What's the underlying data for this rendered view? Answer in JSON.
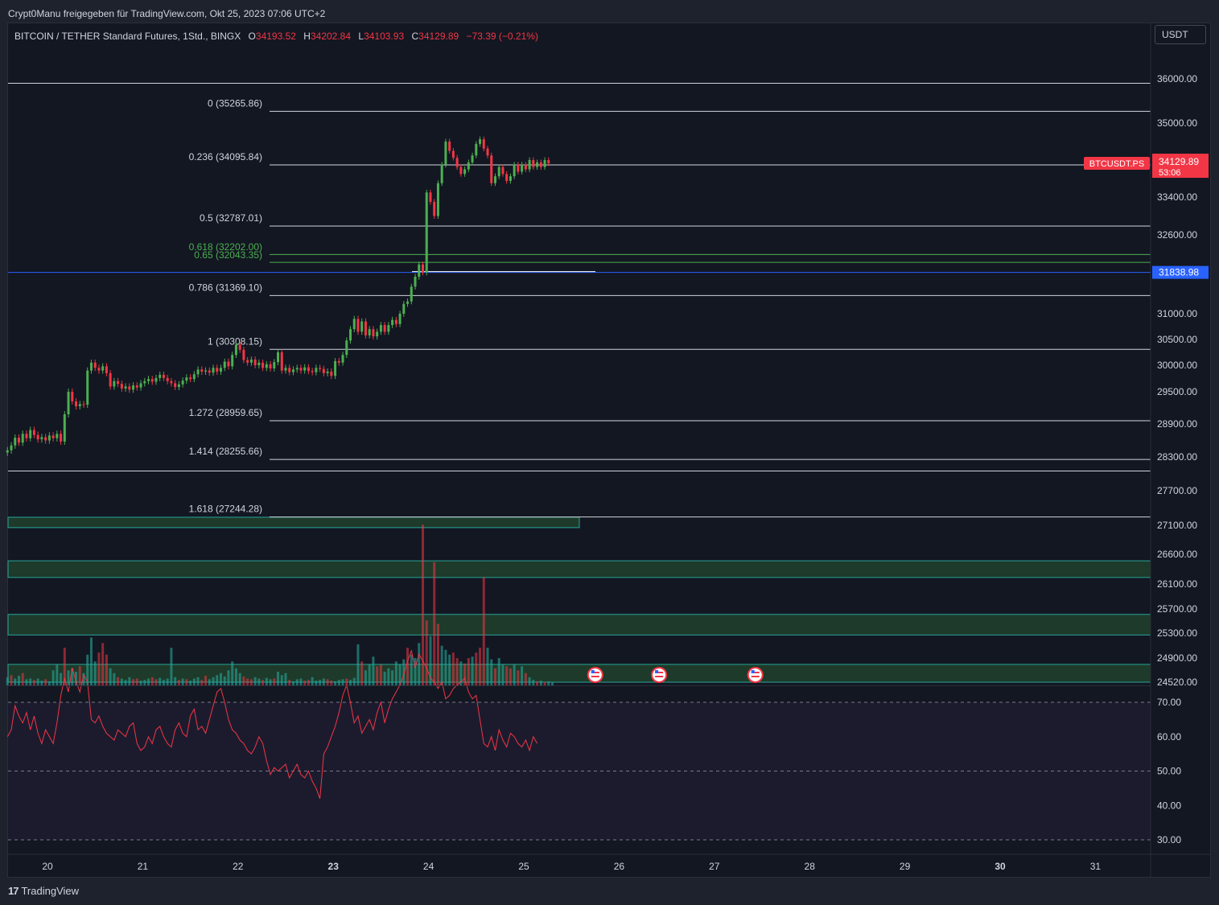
{
  "header": {
    "share_line": "Crypt0Manu freigegeben für TradingView.com, Okt 25, 2023 07:06 UTC+2"
  },
  "legend": {
    "symbol": "BITCOIN / TETHER Standard Futures, 1Std., BINGX",
    "open_label": "O",
    "open": "34193.52",
    "high_label": "H",
    "high": "34202.84",
    "low_label": "L",
    "low": "34103.93",
    "close_label": "C",
    "close": "34129.89",
    "change": "−73.39 (−0.21%)"
  },
  "currency": "USDT",
  "footer": {
    "brand": "TradingView",
    "mark": "17"
  },
  "colors": {
    "background": "#131722",
    "up": "#26a69a",
    "candle_up": "#4caf50",
    "down": "#f23645",
    "fib_line": "#d1d4dc",
    "fib_green": "#4caf50",
    "hline_blue": "#2962ff",
    "zone_fill": "#1e3a2a",
    "zone_border": "#26a69a",
    "rsi_line": "#f23645",
    "rsi_band": "#1c1b2e"
  },
  "chart_data": [
    {
      "type": "line",
      "description_key": "price",
      "symbol_tag": "BTCUSDT.PS",
      "last_price": "34129.89",
      "countdown": "53:06",
      "hline_price_label": "31838.98",
      "hline_price": 31838.98,
      "y_ticks": [
        {
          "value": 36000,
          "label": "36000.00"
        },
        {
          "value": 35000,
          "label": "35000.00"
        },
        {
          "value": 33400,
          "label": "33400.00"
        },
        {
          "value": 32600,
          "label": "32600.00"
        },
        {
          "value": 31000,
          "label": "31000.00"
        },
        {
          "value": 30500,
          "label": "30500.00"
        },
        {
          "value": 30000,
          "label": "30000.00"
        },
        {
          "value": 29500,
          "label": "29500.00"
        },
        {
          "value": 28900,
          "label": "28900.00"
        },
        {
          "value": 28300,
          "label": "28300.00"
        },
        {
          "value": 27700,
          "label": "27700.00"
        },
        {
          "value": 27100,
          "label": "27100.00"
        },
        {
          "value": 26600,
          "label": "26600.00"
        },
        {
          "value": 26100,
          "label": "26100.00"
        },
        {
          "value": 25700,
          "label": "25700.00"
        },
        {
          "value": 25300,
          "label": "25300.00"
        },
        {
          "value": 24900,
          "label": "24900.00"
        },
        {
          "value": 24520,
          "label": "24520.00"
        }
      ],
      "x_ticks": [
        {
          "day": 20,
          "label": "20",
          "bold": false
        },
        {
          "day": 21,
          "label": "21",
          "bold": false
        },
        {
          "day": 22,
          "label": "22",
          "bold": false
        },
        {
          "day": 23,
          "label": "23",
          "bold": true
        },
        {
          "day": 24,
          "label": "24",
          "bold": false
        },
        {
          "day": 25,
          "label": "25",
          "bold": false
        },
        {
          "day": 26,
          "label": "26",
          "bold": false
        },
        {
          "day": 27,
          "label": "27",
          "bold": false
        },
        {
          "day": 28,
          "label": "28",
          "bold": false
        },
        {
          "day": 29,
          "label": "29",
          "bold": false
        },
        {
          "day": 30,
          "label": "30",
          "bold": true
        },
        {
          "day": 31,
          "label": "31",
          "bold": false
        }
      ],
      "fib_levels": [
        {
          "label": "0 (35265.86)",
          "price": 35265.86,
          "green": false
        },
        {
          "label": "0.236 (34095.84)",
          "price": 34095.84,
          "green": false
        },
        {
          "label": "0.5 (32787.01)",
          "price": 32787.01,
          "green": false
        },
        {
          "label": "0.618 (32202.00)",
          "price": 32202.0,
          "green": true
        },
        {
          "label": "0.65 (32043.35)",
          "price": 32043.35,
          "green": true
        },
        {
          "label": "0.786 (31369.10)",
          "price": 31369.1,
          "green": false
        },
        {
          "label": "1 (30308.15)",
          "price": 30308.15,
          "green": false
        },
        {
          "label": "1.272 (28959.65)",
          "price": 28959.65,
          "green": false
        },
        {
          "label": "1.414 (28255.66)",
          "price": 28255.66,
          "green": false
        },
        {
          "label": "1.618 (27244.28)",
          "price": 27244.28,
          "green": false
        }
      ],
      "full_hlines": [
        35900,
        28050
      ],
      "zones": [
        {
          "top": 27240,
          "bottom": 27060
        },
        {
          "top": 26490,
          "bottom": 26210
        },
        {
          "top": 25610,
          "bottom": 25270
        },
        {
          "top": 24800,
          "bottom": 24520
        }
      ],
      "close_series": [
        {
          "day": 19.58,
          "close": 28420
        },
        {
          "day": 19.62,
          "close": 28510
        },
        {
          "day": 19.66,
          "close": 28650
        },
        {
          "day": 19.7,
          "close": 28560
        },
        {
          "day": 19.74,
          "close": 28720
        },
        {
          "day": 19.78,
          "close": 28640
        },
        {
          "day": 19.82,
          "close": 28790
        },
        {
          "day": 19.86,
          "close": 28700
        },
        {
          "day": 19.9,
          "close": 28620
        },
        {
          "day": 19.94,
          "close": 28660
        },
        {
          "day": 19.98,
          "close": 28600
        },
        {
          "day": 20.02,
          "close": 28690
        },
        {
          "day": 20.06,
          "close": 28640
        },
        {
          "day": 20.1,
          "close": 28720
        },
        {
          "day": 20.14,
          "close": 28580
        },
        {
          "day": 20.18,
          "close": 29080
        },
        {
          "day": 20.22,
          "close": 29500
        },
        {
          "day": 20.26,
          "close": 29320
        },
        {
          "day": 20.3,
          "close": 29230
        },
        {
          "day": 20.34,
          "close": 29270
        },
        {
          "day": 20.38,
          "close": 29260
        },
        {
          "day": 20.42,
          "close": 29900
        },
        {
          "day": 20.46,
          "close": 30050
        },
        {
          "day": 20.5,
          "close": 29950
        },
        {
          "day": 20.54,
          "close": 29900
        },
        {
          "day": 20.58,
          "close": 29980
        },
        {
          "day": 20.62,
          "close": 29850
        },
        {
          "day": 20.66,
          "close": 29600
        },
        {
          "day": 20.7,
          "close": 29700
        },
        {
          "day": 20.74,
          "close": 29650
        },
        {
          "day": 20.78,
          "close": 29560
        },
        {
          "day": 20.82,
          "close": 29600
        },
        {
          "day": 20.86,
          "close": 29540
        },
        {
          "day": 20.9,
          "close": 29620
        },
        {
          "day": 20.94,
          "close": 29580
        },
        {
          "day": 20.98,
          "close": 29660
        },
        {
          "day": 21.02,
          "close": 29700
        },
        {
          "day": 21.06,
          "close": 29740
        },
        {
          "day": 21.1,
          "close": 29690
        },
        {
          "day": 21.14,
          "close": 29760
        },
        {
          "day": 21.18,
          "close": 29820
        },
        {
          "day": 21.22,
          "close": 29760
        },
        {
          "day": 21.26,
          "close": 29700
        },
        {
          "day": 21.3,
          "close": 29660
        },
        {
          "day": 21.34,
          "close": 29590
        },
        {
          "day": 21.38,
          "close": 29640
        },
        {
          "day": 21.42,
          "close": 29710
        },
        {
          "day": 21.46,
          "close": 29770
        },
        {
          "day": 21.5,
          "close": 29740
        },
        {
          "day": 21.54,
          "close": 29830
        },
        {
          "day": 21.58,
          "close": 29920
        },
        {
          "day": 21.62,
          "close": 29880
        },
        {
          "day": 21.66,
          "close": 29900
        },
        {
          "day": 21.7,
          "close": 29860
        },
        {
          "day": 21.74,
          "close": 29950
        },
        {
          "day": 21.78,
          "close": 29880
        },
        {
          "day": 21.82,
          "close": 29950
        },
        {
          "day": 21.86,
          "close": 30070
        },
        {
          "day": 21.9,
          "close": 29980
        },
        {
          "day": 21.94,
          "close": 30200
        },
        {
          "day": 21.98,
          "close": 30400
        },
        {
          "day": 22.02,
          "close": 30300
        },
        {
          "day": 22.06,
          "close": 30100
        },
        {
          "day": 22.1,
          "close": 30050
        },
        {
          "day": 22.14,
          "close": 30110
        },
        {
          "day": 22.18,
          "close": 30000
        },
        {
          "day": 22.22,
          "close": 30050
        },
        {
          "day": 22.26,
          "close": 29950
        },
        {
          "day": 22.3,
          "close": 30020
        },
        {
          "day": 22.34,
          "close": 29940
        },
        {
          "day": 22.38,
          "close": 30060
        },
        {
          "day": 22.42,
          "close": 30250
        },
        {
          "day": 22.46,
          "close": 29900
        },
        {
          "day": 22.5,
          "close": 29950
        },
        {
          "day": 22.54,
          "close": 29870
        },
        {
          "day": 22.58,
          "close": 29920
        },
        {
          "day": 22.62,
          "close": 29950
        },
        {
          "day": 22.66,
          "close": 29900
        },
        {
          "day": 22.7,
          "close": 29960
        },
        {
          "day": 22.74,
          "close": 29890
        },
        {
          "day": 22.78,
          "close": 29870
        },
        {
          "day": 22.82,
          "close": 29950
        },
        {
          "day": 22.86,
          "close": 29930
        },
        {
          "day": 22.9,
          "close": 29850
        },
        {
          "day": 22.94,
          "close": 29880
        },
        {
          "day": 22.98,
          "close": 29800
        },
        {
          "day": 23.02,
          "close": 30080
        },
        {
          "day": 23.06,
          "close": 30050
        },
        {
          "day": 23.1,
          "close": 30200
        },
        {
          "day": 23.14,
          "close": 30480
        },
        {
          "day": 23.18,
          "close": 30700
        },
        {
          "day": 23.22,
          "close": 30900
        },
        {
          "day": 23.26,
          "close": 30650
        },
        {
          "day": 23.3,
          "close": 30850
        },
        {
          "day": 23.34,
          "close": 30580
        },
        {
          "day": 23.38,
          "close": 30700
        },
        {
          "day": 23.42,
          "close": 30560
        },
        {
          "day": 23.46,
          "close": 30650
        },
        {
          "day": 23.5,
          "close": 30780
        },
        {
          "day": 23.54,
          "close": 30650
        },
        {
          "day": 23.58,
          "close": 30780
        },
        {
          "day": 23.62,
          "close": 30880
        },
        {
          "day": 23.66,
          "close": 30800
        },
        {
          "day": 23.7,
          "close": 31000
        },
        {
          "day": 23.74,
          "close": 31200
        },
        {
          "day": 23.78,
          "close": 31250
        },
        {
          "day": 23.82,
          "close": 31550
        },
        {
          "day": 23.86,
          "close": 31750
        },
        {
          "day": 23.9,
          "close": 32000
        },
        {
          "day": 23.94,
          "close": 31840
        },
        {
          "day": 23.98,
          "close": 33500
        },
        {
          "day": 24.02,
          "close": 33300
        },
        {
          "day": 24.06,
          "close": 33000
        },
        {
          "day": 24.1,
          "close": 33700
        },
        {
          "day": 24.14,
          "close": 34100
        },
        {
          "day": 24.18,
          "close": 34600
        },
        {
          "day": 24.22,
          "close": 34400
        },
        {
          "day": 24.26,
          "close": 34250
        },
        {
          "day": 24.3,
          "close": 34050
        },
        {
          "day": 24.34,
          "close": 33900
        },
        {
          "day": 24.38,
          "close": 34000
        },
        {
          "day": 24.42,
          "close": 34150
        },
        {
          "day": 24.46,
          "close": 34300
        },
        {
          "day": 24.5,
          "close": 34550
        },
        {
          "day": 24.54,
          "close": 34650
        },
        {
          "day": 24.58,
          "close": 34450
        },
        {
          "day": 24.62,
          "close": 34300
        },
        {
          "day": 24.66,
          "close": 33700
        },
        {
          "day": 24.7,
          "close": 33850
        },
        {
          "day": 24.74,
          "close": 34050
        },
        {
          "day": 24.78,
          "close": 33900
        },
        {
          "day": 24.82,
          "close": 33750
        },
        {
          "day": 24.86,
          "close": 33850
        },
        {
          "day": 24.9,
          "close": 34100
        },
        {
          "day": 24.94,
          "close": 33950
        },
        {
          "day": 24.98,
          "close": 34100
        },
        {
          "day": 25.02,
          "close": 34000
        },
        {
          "day": 25.06,
          "close": 34200
        },
        {
          "day": 25.1,
          "close": 34050
        },
        {
          "day": 25.14,
          "close": 34150
        },
        {
          "day": 25.18,
          "close": 34050
        },
        {
          "day": 25.22,
          "close": 34200
        },
        {
          "day": 25.26,
          "close": 34130
        }
      ],
      "event_markers_days": [
        25.75,
        26.42,
        27.43
      ]
    },
    {
      "type": "bar",
      "description_key": "volume",
      "values_relative": [
        0.12,
        0.15,
        0.1,
        0.14,
        0.18,
        0.09,
        0.1,
        0.08,
        0.1,
        0.07,
        0.09,
        0.06,
        0.22,
        0.3,
        0.18,
        0.55,
        0.22,
        0.25,
        0.2,
        0.28,
        0.18,
        0.45,
        0.7,
        0.35,
        0.48,
        0.62,
        0.45,
        0.25,
        0.18,
        0.12,
        0.1,
        0.08,
        0.12,
        0.09,
        0.1,
        0.07,
        0.08,
        0.1,
        0.12,
        0.09,
        0.11,
        0.08,
        0.1,
        0.55,
        0.12,
        0.08,
        0.1,
        0.09,
        0.07,
        0.1,
        0.12,
        0.08,
        0.14,
        0.09,
        0.12,
        0.15,
        0.18,
        0.13,
        0.22,
        0.35,
        0.25,
        0.18,
        0.13,
        0.1,
        0.09,
        0.12,
        0.1,
        0.08,
        0.11,
        0.09,
        0.1,
        0.2,
        0.15,
        0.18,
        0.08,
        0.06,
        0.09,
        0.1,
        0.07,
        0.08,
        0.12,
        0.07,
        0.08,
        0.1,
        0.09,
        0.07,
        0.06,
        0.08,
        0.09,
        0.1,
        0.08,
        0.11,
        0.6,
        0.35,
        0.22,
        0.3,
        0.42,
        0.28,
        0.3,
        0.2,
        0.25,
        0.22,
        0.35,
        0.3,
        0.38,
        0.55,
        0.45,
        0.4,
        0.62,
        2.35,
        0.95,
        0.72,
        1.8,
        0.9,
        0.58,
        0.52,
        0.45,
        0.48,
        0.4,
        0.35,
        0.32,
        0.4,
        0.42,
        0.48,
        0.55,
        1.58,
        0.55,
        0.38,
        0.25,
        0.4,
        0.3,
        0.28,
        0.25,
        0.3,
        0.22,
        0.28,
        0.18,
        0.12,
        0.08,
        0.06,
        0.07,
        0.05,
        0.06,
        0.04
      ],
      "directions": "uduuduuduuduuuuduuuduuuuddduuduuudduuudduuuuududuuudduuuuuuuuuddduuduuduuuduuudduuuudduuuduuuduuudduuuuuuduuuddudduuuddudduddduuduuddududuud"
    },
    {
      "type": "line",
      "description_key": "rsi",
      "y_ticks": [
        {
          "value": 70,
          "label": "70.00"
        },
        {
          "value": 60,
          "label": "60.00"
        },
        {
          "value": 50,
          "label": "50.00"
        },
        {
          "value": 40,
          "label": "40.00"
        },
        {
          "value": 30,
          "label": "30.00"
        }
      ],
      "band_upper": 70,
      "band_lower": 30,
      "mid": 50,
      "values": [
        60,
        62,
        69,
        66,
        64,
        67,
        62,
        66,
        61,
        58,
        62,
        60,
        58,
        64,
        72,
        77,
        73,
        80,
        76,
        73,
        78,
        76,
        65,
        64,
        66,
        63,
        61,
        60,
        59,
        62,
        61,
        60,
        63,
        64,
        58,
        56,
        57,
        60,
        58,
        62,
        63,
        60,
        58,
        57,
        62,
        64,
        61,
        60,
        66,
        68,
        62,
        63,
        61,
        65,
        69,
        73,
        74,
        70,
        65,
        62,
        61,
        59,
        58,
        56,
        55,
        57,
        60,
        58,
        53,
        49,
        51,
        50,
        51,
        52,
        48,
        50,
        52,
        49,
        48,
        50,
        47,
        45,
        42,
        55,
        57,
        60,
        63,
        67,
        72,
        75,
        70,
        64,
        66,
        61,
        63,
        65,
        62,
        67,
        70,
        64,
        68,
        71,
        73,
        75,
        78,
        82,
        85,
        80,
        84,
        82,
        80,
        77,
        76,
        74,
        76,
        71,
        72,
        74,
        75,
        76,
        77,
        73,
        71,
        72,
        65,
        58,
        57,
        60,
        56,
        62,
        59,
        57,
        61,
        60,
        58,
        57,
        59,
        56,
        60,
        58
      ],
      "x_start_day": 19.58,
      "x_step_day": 0.04
    }
  ]
}
